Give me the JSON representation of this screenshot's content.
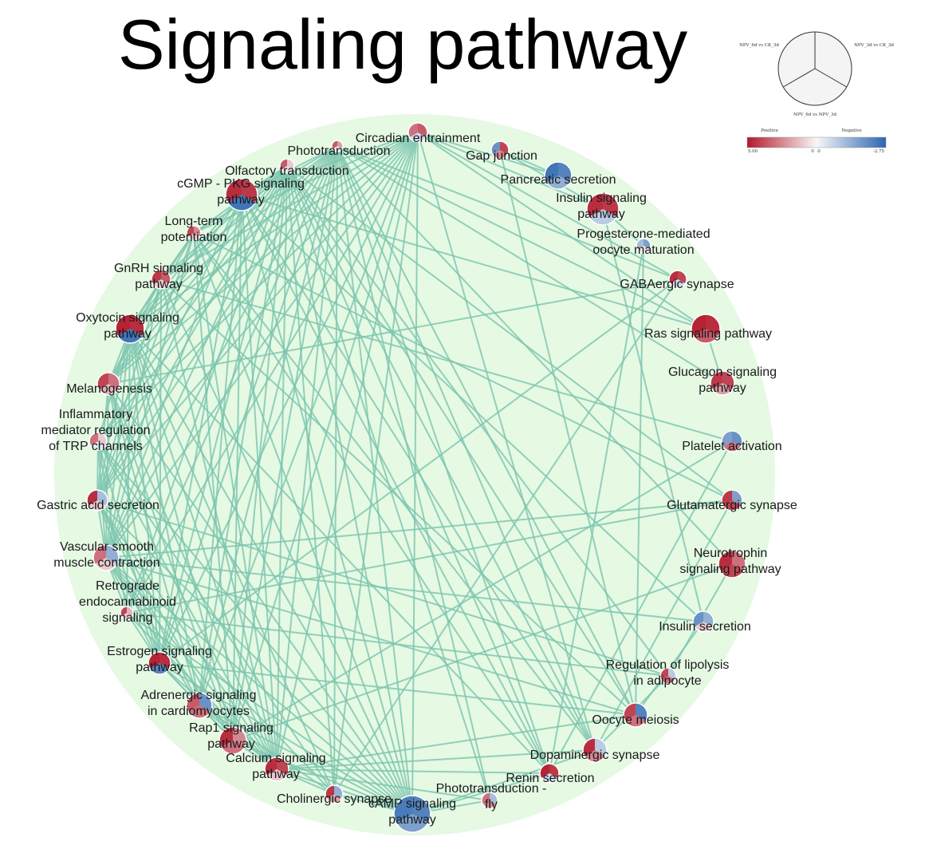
{
  "title": "Signaling pathway",
  "colors": {
    "positive_high": "#b2182b",
    "neutral": "#f7f7f7",
    "negative_high": "#2c66b0",
    "background_circle": "#e5f9e3",
    "edge": "#7cc4ae"
  },
  "legend": {
    "sector_labels": [
      "NPV_6d vs CK_3d",
      "NPV_3d vs CK_3d",
      "NPV_6d vs NPV_3d"
    ],
    "scale_headers": [
      "Positive",
      "Negative"
    ],
    "scale_values": [
      "5.00",
      "0",
      "0",
      "-2.75"
    ]
  },
  "nodes": [
    {
      "id": "circadian",
      "lines": [
        "Circadian entrainment"
      ],
      "v": [
        0.6,
        0.7,
        -0.2
      ]
    },
    {
      "id": "gap",
      "lines": [
        "Gap junction"
      ],
      "v": [
        -0.7,
        0.8,
        0.5
      ]
    },
    {
      "id": "pancreatic",
      "lines": [
        "Pancreatic secretion"
      ],
      "v": [
        -0.9,
        -0.8,
        -0.5
      ]
    },
    {
      "id": "insulin_sig",
      "lines": [
        "Insulin signaling",
        "pathway"
      ],
      "v": [
        0.9,
        0.85,
        -0.3
      ]
    },
    {
      "id": "progesterone",
      "lines": [
        "Progesterone-mediated",
        "oocyte maturation"
      ],
      "v": [
        -0.4,
        -0.6,
        0.1
      ]
    },
    {
      "id": "gaba",
      "lines": [
        "GABAergic synapse"
      ],
      "v": [
        0.9,
        0.8,
        -0.2
      ]
    },
    {
      "id": "ras",
      "lines": [
        "Ras signaling pathway"
      ],
      "v": [
        0.95,
        0.9,
        0.7
      ]
    },
    {
      "id": "glucagon",
      "lines": [
        "Glucagon signaling",
        "pathway"
      ],
      "v": [
        0.85,
        0.8,
        0.4
      ]
    },
    {
      "id": "platelet",
      "lines": [
        "Platelet activation"
      ],
      "v": [
        -0.6,
        -0.7,
        0.6
      ]
    },
    {
      "id": "glutamatergic",
      "lines": [
        "Glutamatergic synapse"
      ],
      "v": [
        0.85,
        -0.6,
        0.8
      ]
    },
    {
      "id": "neurotrophin",
      "lines": [
        "Neurotrophin",
        "signaling pathway"
      ],
      "v": [
        0.9,
        0.6,
        0.8
      ]
    },
    {
      "id": "insulin_sec",
      "lines": [
        "Insulin secretion"
      ],
      "v": [
        -0.7,
        -0.5,
        0.2
      ]
    },
    {
      "id": "lipolysis",
      "lines": [
        "Regulation of lipolysis",
        "in adipocyte"
      ],
      "v": [
        0.8,
        -0.3,
        0.6
      ]
    },
    {
      "id": "oocyte",
      "lines": [
        "Oocyte meiosis"
      ],
      "v": [
        0.8,
        -0.8,
        0.6
      ]
    },
    {
      "id": "dopaminergic",
      "lines": [
        "Dopaminergic synapse"
      ],
      "v": [
        0.9,
        -0.3,
        0.5
      ]
    },
    {
      "id": "renin",
      "lines": [
        "Renin secretion"
      ],
      "v": [
        0.95,
        0.85,
        -0.2
      ]
    },
    {
      "id": "phototrans_fly",
      "lines": [
        "Phototransduction -",
        "fly"
      ],
      "v": [
        0.6,
        -0.4,
        0.5
      ]
    },
    {
      "id": "camp",
      "lines": [
        "cAMP signaling",
        "pathway"
      ],
      "v": [
        -0.85,
        -0.8,
        -0.6
      ]
    },
    {
      "id": "cholinergic",
      "lines": [
        "Cholinergic synapse"
      ],
      "v": [
        0.85,
        -0.5,
        0.4
      ]
    },
    {
      "id": "calcium",
      "lines": [
        "Calcium signaling",
        "pathway"
      ],
      "v": [
        0.9,
        0.8,
        0.2
      ]
    },
    {
      "id": "rap1",
      "lines": [
        "Rap1 signaling",
        "pathway"
      ],
      "v": [
        0.9,
        0.5,
        0.6
      ]
    },
    {
      "id": "adrenergic",
      "lines": [
        "Adrenergic signaling",
        "in cardiomyocytes"
      ],
      "v": [
        0.7,
        -0.7,
        0.6
      ]
    },
    {
      "id": "estrogen",
      "lines": [
        "Estrogen signaling",
        "pathway"
      ],
      "v": [
        0.95,
        0.9,
        -0.8
      ]
    },
    {
      "id": "retrograde",
      "lines": [
        "Retrograde",
        "endocannabinoid",
        "signaling"
      ],
      "v": [
        0.8,
        0.3,
        0.2
      ]
    },
    {
      "id": "vascular",
      "lines": [
        "Vascular smooth",
        "muscle contraction"
      ],
      "v": [
        0.6,
        -0.5,
        0.2
      ]
    },
    {
      "id": "gastric",
      "lines": [
        "Gastric acid secretion"
      ],
      "v": [
        0.9,
        -0.4,
        0.2
      ]
    },
    {
      "id": "inflammatory",
      "lines": [
        "Inflammatory",
        "mediator regulation",
        "of TRP channels"
      ],
      "v": [
        0.6,
        0.2,
        -0.1
      ]
    },
    {
      "id": "melanogenesis",
      "lines": [
        "Melanogenesis"
      ],
      "v": [
        0.8,
        0.6,
        0.3
      ]
    },
    {
      "id": "oxytocin",
      "lines": [
        "Oxytocin signaling",
        "pathway"
      ],
      "v": [
        0.95,
        0.9,
        -0.9
      ]
    },
    {
      "id": "gnrh",
      "lines": [
        "GnRH signaling",
        "pathway"
      ],
      "v": [
        0.85,
        0.7,
        0.2
      ]
    },
    {
      "id": "ltp",
      "lines": [
        "Long-term",
        "potentiation"
      ],
      "v": [
        0.8,
        0.5,
        0.2
      ]
    },
    {
      "id": "cgmp",
      "lines": [
        "cGMP - PKG signaling",
        "pathway"
      ],
      "v": [
        0.9,
        0.85,
        -0.9
      ]
    },
    {
      "id": "olfactory",
      "lines": [
        "Olfactory transduction"
      ],
      "v": [
        0.7,
        0.2,
        0.1
      ]
    },
    {
      "id": "phototrans",
      "lines": [
        "Phototransduction"
      ],
      "v": [
        0.7,
        0.4,
        0.1
      ]
    }
  ],
  "edges": [
    [
      "circadian",
      "cgmp"
    ],
    [
      "circadian",
      "ltp"
    ],
    [
      "circadian",
      "gnrh"
    ],
    [
      "circadian",
      "oxytocin"
    ],
    [
      "circadian",
      "melanogenesis"
    ],
    [
      "circadian",
      "gastric"
    ],
    [
      "circadian",
      "vascular"
    ],
    [
      "circadian",
      "camp"
    ],
    [
      "circadian",
      "calcium"
    ],
    [
      "circadian",
      "rap1"
    ],
    [
      "circadian",
      "gaba"
    ],
    [
      "circadian",
      "ras"
    ],
    [
      "circadian",
      "insulin_sig"
    ],
    [
      "circadian",
      "pancreatic"
    ],
    [
      "circadian",
      "dopaminergic"
    ],
    [
      "circadian",
      "adrenergic"
    ],
    [
      "circadian",
      "estrogen"
    ],
    [
      "circadian",
      "inflammatory"
    ],
    [
      "circadian",
      "retrograde"
    ],
    [
      "circadian",
      "cholinergic"
    ],
    [
      "phototrans",
      "cgmp"
    ],
    [
      "phototrans",
      "ltp"
    ],
    [
      "phototrans",
      "gnrh"
    ],
    [
      "phototrans",
      "oxytocin"
    ],
    [
      "phototrans",
      "melanogenesis"
    ],
    [
      "phototrans",
      "inflammatory"
    ],
    [
      "phototrans",
      "gastric"
    ],
    [
      "phototrans",
      "vascular"
    ],
    [
      "phototrans",
      "retrograde"
    ],
    [
      "phototrans",
      "estrogen"
    ],
    [
      "phototrans",
      "adrenergic"
    ],
    [
      "phototrans",
      "rap1"
    ],
    [
      "phototrans",
      "calcium"
    ],
    [
      "phototrans",
      "cholinergic"
    ],
    [
      "phototrans",
      "camp"
    ],
    [
      "phototrans",
      "phototrans_fly"
    ],
    [
      "phototrans",
      "renin"
    ],
    [
      "phototrans",
      "dopaminergic"
    ],
    [
      "phototrans",
      "oocyte"
    ],
    [
      "phototrans",
      "neurotrophin"
    ],
    [
      "phototrans",
      "glucagon"
    ],
    [
      "phototrans",
      "ras"
    ],
    [
      "phototrans",
      "gaba"
    ],
    [
      "olfactory",
      "cgmp"
    ],
    [
      "olfactory",
      "ltp"
    ],
    [
      "olfactory",
      "gnrh"
    ],
    [
      "olfactory",
      "oxytocin"
    ],
    [
      "olfactory",
      "melanogenesis"
    ],
    [
      "olfactory",
      "inflammatory"
    ],
    [
      "olfactory",
      "gastric"
    ],
    [
      "olfactory",
      "vascular"
    ],
    [
      "olfactory",
      "retrograde"
    ],
    [
      "olfactory",
      "estrogen"
    ],
    [
      "olfactory",
      "adrenergic"
    ],
    [
      "olfactory",
      "rap1"
    ],
    [
      "olfactory",
      "calcium"
    ],
    [
      "olfactory",
      "cholinergic"
    ],
    [
      "olfactory",
      "camp"
    ],
    [
      "olfactory",
      "phototrans_fly"
    ],
    [
      "olfactory",
      "renin"
    ],
    [
      "olfactory",
      "dopaminergic"
    ],
    [
      "olfactory",
      "oocyte"
    ],
    [
      "olfactory",
      "lipolysis"
    ],
    [
      "olfactory",
      "glutamatergic"
    ],
    [
      "cgmp",
      "vascular"
    ],
    [
      "cgmp",
      "gastric"
    ],
    [
      "cgmp",
      "oxytocin"
    ],
    [
      "cgmp",
      "melanogenesis"
    ],
    [
      "cgmp",
      "camp"
    ],
    [
      "cgmp",
      "calcium"
    ],
    [
      "cgmp",
      "rap1"
    ],
    [
      "cgmp",
      "adrenergic"
    ],
    [
      "cgmp",
      "estrogen"
    ],
    [
      "cgmp",
      "dopaminergic"
    ],
    [
      "cgmp",
      "renin"
    ],
    [
      "cgmp",
      "insulin_sec"
    ],
    [
      "cgmp",
      "ras"
    ],
    [
      "ltp",
      "gnrh"
    ],
    [
      "ltp",
      "oxytocin"
    ],
    [
      "ltp",
      "melanogenesis"
    ],
    [
      "ltp",
      "gastric"
    ],
    [
      "ltp",
      "vascular"
    ],
    [
      "ltp",
      "camp"
    ],
    [
      "ltp",
      "calcium"
    ],
    [
      "ltp",
      "rap1"
    ],
    [
      "ltp",
      "dopaminergic"
    ],
    [
      "ltp",
      "glutamatergic"
    ],
    [
      "ltp",
      "renin"
    ],
    [
      "gnrh",
      "oxytocin"
    ],
    [
      "gnrh",
      "melanogenesis"
    ],
    [
      "gnrh",
      "gastric"
    ],
    [
      "gnrh",
      "vascular"
    ],
    [
      "gnrh",
      "estrogen"
    ],
    [
      "gnrh",
      "calcium"
    ],
    [
      "gnrh",
      "camp"
    ],
    [
      "gnrh",
      "oocyte"
    ],
    [
      "gnrh",
      "platelet"
    ],
    [
      "oxytocin",
      "melanogenesis"
    ],
    [
      "oxytocin",
      "inflammatory"
    ],
    [
      "oxytocin",
      "gastric"
    ],
    [
      "oxytocin",
      "vascular"
    ],
    [
      "oxytocin",
      "retrograde"
    ],
    [
      "oxytocin",
      "estrogen"
    ],
    [
      "oxytocin",
      "adrenergic"
    ],
    [
      "oxytocin",
      "rap1"
    ],
    [
      "oxytocin",
      "calcium"
    ],
    [
      "oxytocin",
      "camp"
    ],
    [
      "oxytocin",
      "cholinergic"
    ],
    [
      "oxytocin",
      "renin"
    ],
    [
      "melanogenesis",
      "gastric"
    ],
    [
      "melanogenesis",
      "vascular"
    ],
    [
      "melanogenesis",
      "estrogen"
    ],
    [
      "melanogenesis",
      "calcium"
    ],
    [
      "melanogenesis",
      "camp"
    ],
    [
      "melanogenesis",
      "rap1"
    ],
    [
      "melanogenesis",
      "adrenergic"
    ],
    [
      "melanogenesis",
      "gaba"
    ],
    [
      "inflammatory",
      "gastric"
    ],
    [
      "inflammatory",
      "vascular"
    ],
    [
      "inflammatory",
      "retrograde"
    ],
    [
      "inflammatory",
      "calcium"
    ],
    [
      "inflammatory",
      "camp"
    ],
    [
      "inflammatory",
      "cholinergic"
    ],
    [
      "inflammatory",
      "estrogen"
    ],
    [
      "gastric",
      "vascular"
    ],
    [
      "gastric",
      "estrogen"
    ],
    [
      "gastric",
      "calcium"
    ],
    [
      "gastric",
      "camp"
    ],
    [
      "gastric",
      "rap1"
    ],
    [
      "gastric",
      "adrenergic"
    ],
    [
      "gastric",
      "lipolysis"
    ],
    [
      "vascular",
      "retrograde"
    ],
    [
      "vascular",
      "estrogen"
    ],
    [
      "vascular",
      "adrenergic"
    ],
    [
      "vascular",
      "calcium"
    ],
    [
      "vascular",
      "camp"
    ],
    [
      "vascular",
      "rap1"
    ],
    [
      "vascular",
      "cholinergic"
    ],
    [
      "vascular",
      "glutamatergic"
    ],
    [
      "vascular",
      "insulin_sec"
    ],
    [
      "vascular",
      "oocyte"
    ],
    [
      "retrograde",
      "estrogen"
    ],
    [
      "retrograde",
      "calcium"
    ],
    [
      "retrograde",
      "camp"
    ],
    [
      "retrograde",
      "glutamatergic"
    ],
    [
      "retrograde",
      "lipolysis"
    ],
    [
      "estrogen",
      "adrenergic"
    ],
    [
      "estrogen",
      "rap1"
    ],
    [
      "estrogen",
      "calcium"
    ],
    [
      "estrogen",
      "camp"
    ],
    [
      "estrogen",
      "oocyte"
    ],
    [
      "estrogen",
      "gaba"
    ],
    [
      "adrenergic",
      "rap1"
    ],
    [
      "adrenergic",
      "calcium"
    ],
    [
      "adrenergic",
      "camp"
    ],
    [
      "adrenergic",
      "cholinergic"
    ],
    [
      "rap1",
      "calcium"
    ],
    [
      "rap1",
      "camp"
    ],
    [
      "rap1",
      "platelet"
    ],
    [
      "rap1",
      "neurotrophin"
    ],
    [
      "calcium",
      "camp"
    ],
    [
      "calcium",
      "cholinergic"
    ],
    [
      "calcium",
      "renin"
    ],
    [
      "calcium",
      "dopaminergic"
    ],
    [
      "calcium",
      "oocyte"
    ],
    [
      "calcium",
      "phototrans_fly"
    ],
    [
      "cholinergic",
      "camp"
    ],
    [
      "camp",
      "phototrans_fly"
    ],
    [
      "camp",
      "renin"
    ],
    [
      "camp",
      "dopaminergic"
    ],
    [
      "gap",
      "pancreatic"
    ],
    [
      "gap",
      "oocyte"
    ],
    [
      "gap",
      "insulin_sig"
    ],
    [
      "insulin_sig",
      "insulin_sec"
    ],
    [
      "insulin_sig",
      "progesterone"
    ],
    [
      "progesterone",
      "oocyte"
    ],
    [
      "progesterone",
      "renin"
    ],
    [
      "gaba",
      "cholinergic"
    ],
    [
      "ras",
      "glucagon"
    ],
    [
      "platelet",
      "renin"
    ],
    [
      "glutamatergic",
      "dopaminergic"
    ],
    [
      "neurotrophin",
      "lipolysis"
    ],
    [
      "insulin_sec",
      "oocyte"
    ],
    [
      "lipolysis",
      "dopaminergic"
    ]
  ]
}
